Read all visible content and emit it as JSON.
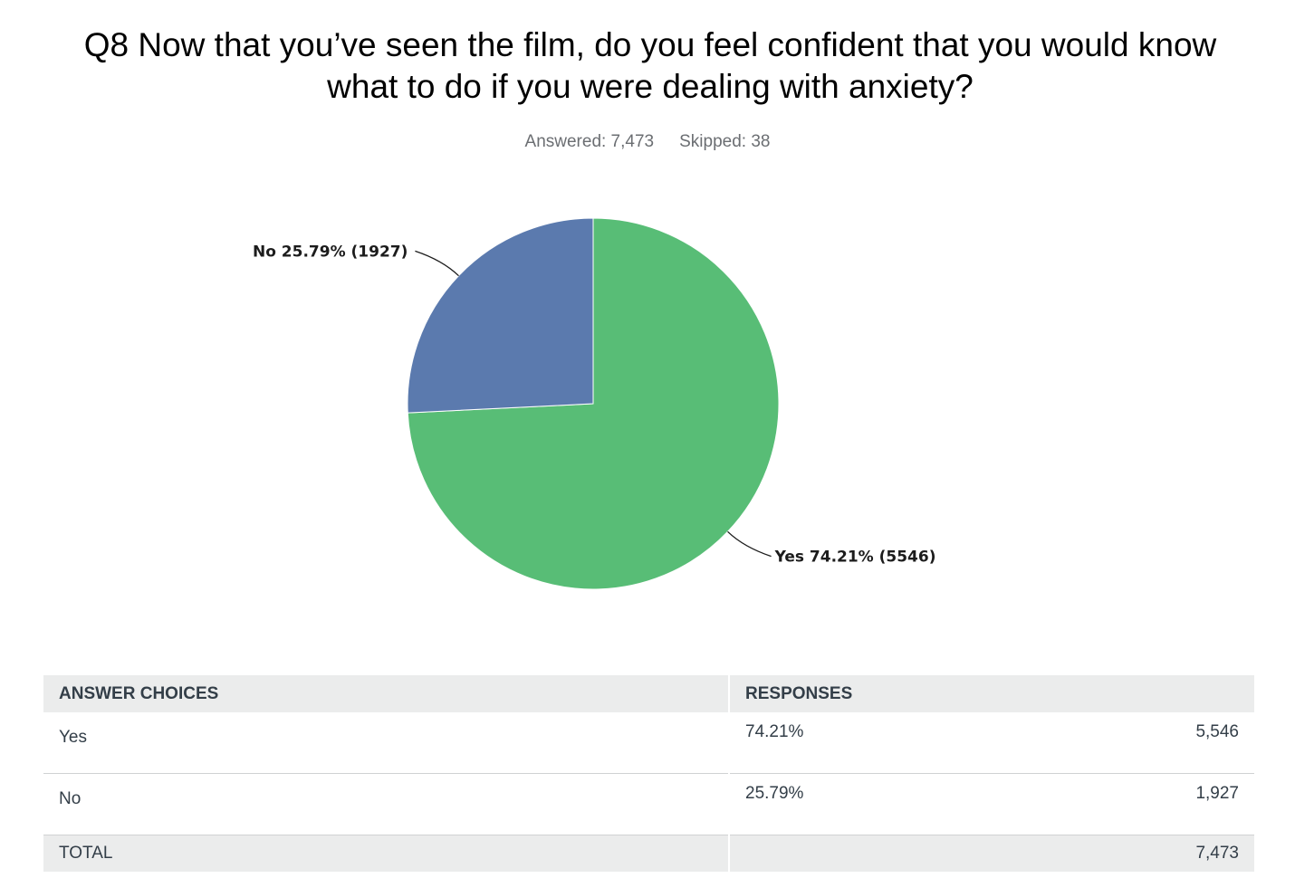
{
  "title": "Q8 Now that you’ve seen the film, do you feel confident that you would know what to do if you were dealing with anxiety?",
  "answered": "Answered: 7,473",
  "skipped": "Skipped: 38",
  "chart_data": {
    "type": "pie",
    "slices": [
      {
        "name": "Yes",
        "value": 5546,
        "percent": 74.21,
        "label": "Yes 74.21% (5546)",
        "color": "#58bd76"
      },
      {
        "name": "No",
        "value": 1927,
        "percent": 25.79,
        "label": "No 25.79% (1927)",
        "color": "#5b7aae"
      }
    ]
  },
  "table": {
    "headers": {
      "choices": "ANSWER CHOICES",
      "responses": "RESPONSES"
    },
    "rows": [
      {
        "choice": "Yes",
        "percent": "74.21%",
        "count": "5,546"
      },
      {
        "choice": "No",
        "percent": "25.79%",
        "count": "1,927"
      }
    ],
    "total": {
      "label": "TOTAL",
      "count": "7,473"
    }
  }
}
